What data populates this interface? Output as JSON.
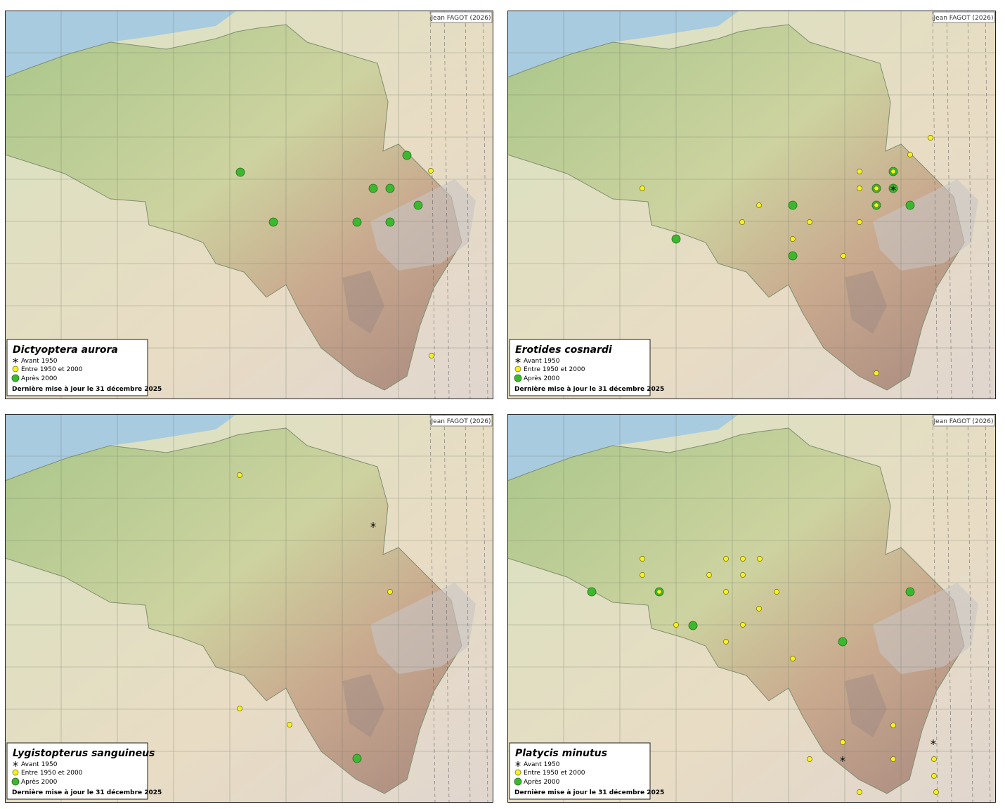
{
  "panels": [
    {
      "title": "Dictyoptera aurora",
      "credit": "Jean FAGOT (2026)",
      "legend": [
        "Avant 1950",
        "Entre 1950 et 2000",
        "Après 2000"
      ],
      "note": "Dernière mise à jour le 31 décembre 2025"
    },
    {
      "title": "Erotides cosnardi",
      "credit": "Jean FAGOT (2026)",
      "legend": [
        "Avant 1950",
        "Entre 1950 et 2000",
        "Après 2000"
      ],
      "note": "Dernière mise à jour le 31 décembre 2025"
    },
    {
      "title": "Lygistopterus sanguineus",
      "credit": "Jean FAGOT (2026)",
      "legend": [
        "Avant 1950",
        "Entre 1950 et 2000",
        "Après 2000"
      ],
      "note": "Dernière mise à jour le 31 décembre 2025"
    },
    {
      "title": "Platycis minutus",
      "credit": "Jean FAGOT (2026)",
      "legend": [
        "Avant 1950",
        "Entre 1950 et 2000",
        "Après 2000"
      ],
      "note": "Dernière mise à jour le 31 décembre 2025"
    }
  ]
}
